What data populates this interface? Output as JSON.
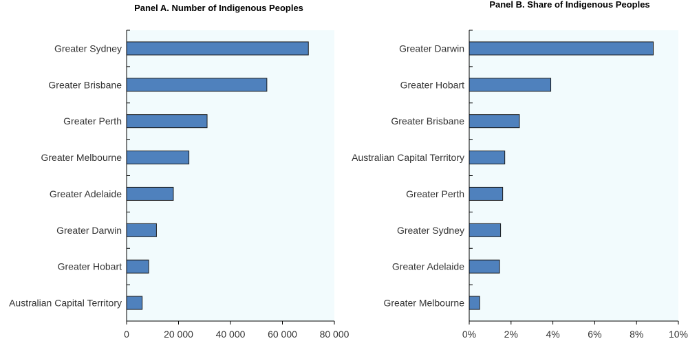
{
  "chart_data": [
    {
      "type": "bar",
      "orientation": "horizontal",
      "title": "Panel A. Number of Indigenous Peoples",
      "categories": [
        "Greater Sydney",
        "Greater Brisbane",
        "Greater Perth",
        "Greater Melbourne",
        "Greater Adelaide",
        "Greater Darwin",
        "Greater Hobart",
        "Australian Capital Territory"
      ],
      "values": [
        70000,
        54000,
        31000,
        24000,
        18000,
        11500,
        8500,
        6000
      ],
      "xlim": [
        0,
        80000
      ],
      "ticks": [
        0,
        20000,
        40000,
        60000,
        80000
      ],
      "tick_labels": [
        "0",
        "20 000",
        "40 000",
        "60 000",
        "80 000"
      ],
      "xlabel": "",
      "ylabel": "",
      "grid": false,
      "legend": "none",
      "bar_color": "#4F81BD",
      "background_color": "#F2FBFD"
    },
    {
      "type": "bar",
      "orientation": "horizontal",
      "title": "Panel B. Share of Indigenous Peoples",
      "categories": [
        "Greater Darwin",
        "Greater Hobart",
        "Greater Brisbane",
        "Australian Capital Territory",
        "Greater Perth",
        "Greater Sydney",
        "Greater Adelaide",
        "Greater Melbourne"
      ],
      "values": [
        8.8,
        3.9,
        2.4,
        1.7,
        1.6,
        1.5,
        1.45,
        0.5
      ],
      "value_unit": "percent",
      "xlim": [
        0,
        10
      ],
      "ticks": [
        0,
        2,
        4,
        6,
        8,
        10
      ],
      "tick_labels": [
        "0%",
        "2%",
        "4%",
        "6%",
        "8%",
        "10%"
      ],
      "xlabel": "",
      "ylabel": "",
      "grid": false,
      "legend": "none",
      "bar_color": "#4F81BD",
      "background_color": "#F2FBFD"
    }
  ]
}
